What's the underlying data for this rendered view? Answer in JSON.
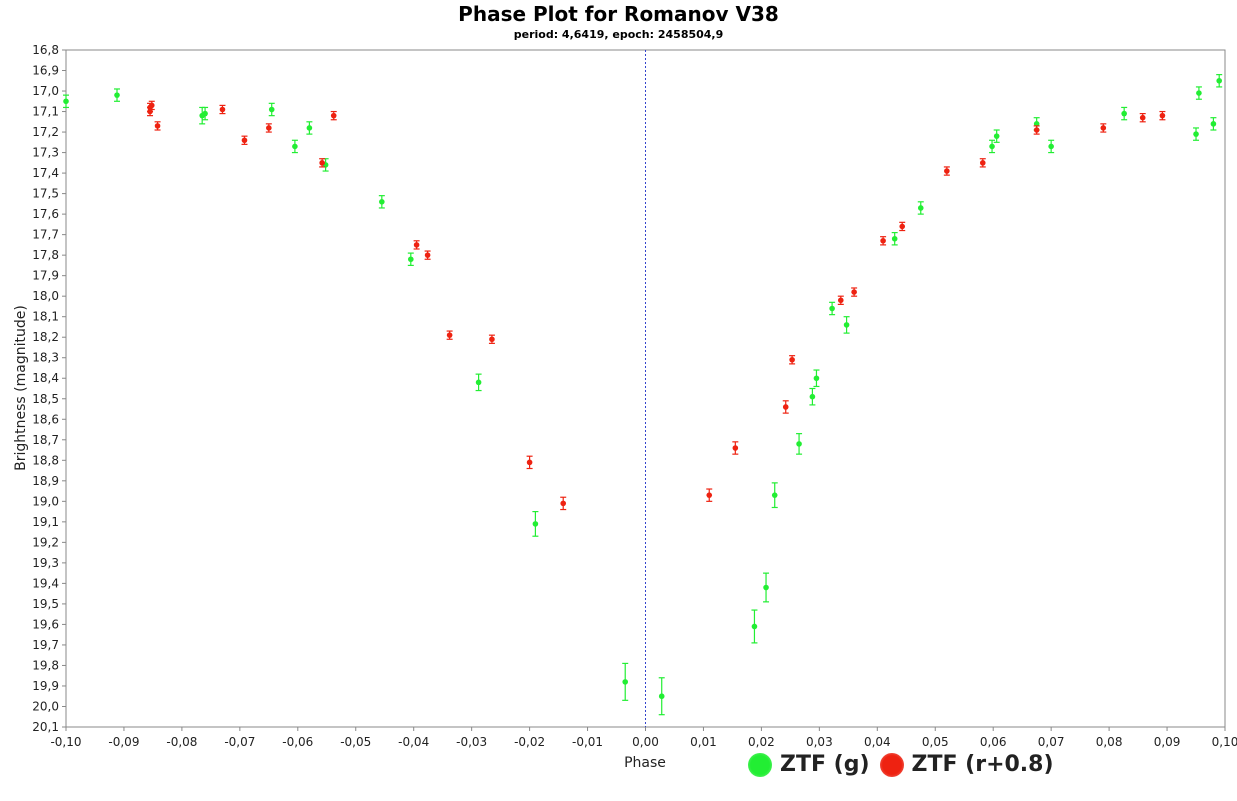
{
  "chart_data": {
    "type": "scatter",
    "title": "Phase Plot for Romanov V38",
    "subtitle": "period: 4,6419, epoch: 2458504,9",
    "xlabel": "Phase",
    "ylabel": "Brightness (magnitude)",
    "xlim": [
      -0.1,
      0.1
    ],
    "ylim": [
      16.8,
      20.1
    ],
    "y_inverted": true,
    "grid": false,
    "vertical_reference_line_x": 0.0,
    "x_ticks": [
      "-0,10",
      "-0,09",
      "-0,08",
      "-0,07",
      "-0,06",
      "-0,05",
      "-0,04",
      "-0,03",
      "-0,02",
      "-0,01",
      "0,00",
      "0,01",
      "0,02",
      "0,03",
      "0,04",
      "0,05",
      "0,06",
      "0,07",
      "0,08",
      "0,09",
      "0,10"
    ],
    "y_ticks": [
      "16,8",
      "16,9",
      "17,0",
      "17,1",
      "17,2",
      "17,3",
      "17,4",
      "17,5",
      "17,6",
      "17,7",
      "17,8",
      "17,9",
      "18,0",
      "18,1",
      "18,2",
      "18,3",
      "18,4",
      "18,5",
      "18,6",
      "18,7",
      "18,8",
      "18,9",
      "19,0",
      "19,1",
      "19,2",
      "19,3",
      "19,4",
      "19,5",
      "19,6",
      "19,7",
      "19,8",
      "19,9",
      "20,0",
      "20,1"
    ],
    "legend_position": "bottom-right",
    "series": [
      {
        "name": "ZTF (g)",
        "color": "#22ee33",
        "points": [
          {
            "x": -0.1,
            "y": 17.05,
            "err": 0.03
          },
          {
            "x": -0.0912,
            "y": 17.02,
            "err": 0.03
          },
          {
            "x": -0.0765,
            "y": 17.12,
            "err": 0.04
          },
          {
            "x": -0.076,
            "y": 17.11,
            "err": 0.03
          },
          {
            "x": -0.0645,
            "y": 17.09,
            "err": 0.03
          },
          {
            "x": -0.0605,
            "y": 17.27,
            "err": 0.03
          },
          {
            "x": -0.058,
            "y": 17.18,
            "err": 0.03
          },
          {
            "x": -0.0552,
            "y": 17.36,
            "err": 0.03
          },
          {
            "x": -0.0455,
            "y": 17.54,
            "err": 0.03
          },
          {
            "x": -0.0405,
            "y": 17.82,
            "err": 0.03
          },
          {
            "x": -0.0288,
            "y": 18.42,
            "err": 0.04
          },
          {
            "x": -0.019,
            "y": 19.11,
            "err": 0.06
          },
          {
            "x": -0.0035,
            "y": 19.88,
            "err": 0.09
          },
          {
            "x": 0.0028,
            "y": 19.95,
            "err": 0.09
          },
          {
            "x": 0.0188,
            "y": 19.61,
            "err": 0.08
          },
          {
            "x": 0.0208,
            "y": 19.42,
            "err": 0.07
          },
          {
            "x": 0.0223,
            "y": 18.97,
            "err": 0.06
          },
          {
            "x": 0.0265,
            "y": 18.72,
            "err": 0.05
          },
          {
            "x": 0.0288,
            "y": 18.49,
            "err": 0.04
          },
          {
            "x": 0.0295,
            "y": 18.4,
            "err": 0.04
          },
          {
            "x": 0.0322,
            "y": 18.06,
            "err": 0.03
          },
          {
            "x": 0.0347,
            "y": 18.14,
            "err": 0.04
          },
          {
            "x": 0.043,
            "y": 17.72,
            "err": 0.03
          },
          {
            "x": 0.0475,
            "y": 17.57,
            "err": 0.03
          },
          {
            "x": 0.0598,
            "y": 17.27,
            "err": 0.03
          },
          {
            "x": 0.0606,
            "y": 17.22,
            "err": 0.03
          },
          {
            "x": 0.0675,
            "y": 17.16,
            "err": 0.03
          },
          {
            "x": 0.07,
            "y": 17.27,
            "err": 0.03
          },
          {
            "x": 0.0826,
            "y": 17.11,
            "err": 0.03
          },
          {
            "x": 0.095,
            "y": 17.21,
            "err": 0.03
          },
          {
            "x": 0.0955,
            "y": 17.01,
            "err": 0.03
          },
          {
            "x": 0.098,
            "y": 17.16,
            "err": 0.03
          },
          {
            "x": 0.099,
            "y": 16.95,
            "err": 0.03
          }
        ]
      },
      {
        "name": "ZTF (r+0.8)",
        "color": "#ee2211",
        "points": [
          {
            "x": -0.0855,
            "y": 17.08,
            "err": 0.02
          },
          {
            "x": -0.0852,
            "y": 17.07,
            "err": 0.02
          },
          {
            "x": -0.0855,
            "y": 17.1,
            "err": 0.02
          },
          {
            "x": -0.0842,
            "y": 17.17,
            "err": 0.02
          },
          {
            "x": -0.073,
            "y": 17.09,
            "err": 0.02
          },
          {
            "x": -0.0692,
            "y": 17.24,
            "err": 0.02
          },
          {
            "x": -0.065,
            "y": 17.18,
            "err": 0.02
          },
          {
            "x": -0.0558,
            "y": 17.35,
            "err": 0.02
          },
          {
            "x": -0.0538,
            "y": 17.12,
            "err": 0.02
          },
          {
            "x": -0.0395,
            "y": 17.75,
            "err": 0.02
          },
          {
            "x": -0.0376,
            "y": 17.8,
            "err": 0.02
          },
          {
            "x": -0.0338,
            "y": 18.19,
            "err": 0.02
          },
          {
            "x": -0.0265,
            "y": 18.21,
            "err": 0.02
          },
          {
            "x": -0.02,
            "y": 18.81,
            "err": 0.03
          },
          {
            "x": -0.0142,
            "y": 19.01,
            "err": 0.03
          },
          {
            "x": 0.011,
            "y": 18.97,
            "err": 0.03
          },
          {
            "x": 0.0155,
            "y": 18.74,
            "err": 0.03
          },
          {
            "x": 0.0242,
            "y": 18.54,
            "err": 0.03
          },
          {
            "x": 0.0253,
            "y": 18.31,
            "err": 0.02
          },
          {
            "x": 0.0337,
            "y": 18.02,
            "err": 0.02
          },
          {
            "x": 0.036,
            "y": 17.98,
            "err": 0.02
          },
          {
            "x": 0.041,
            "y": 17.73,
            "err": 0.02
          },
          {
            "x": 0.0443,
            "y": 17.66,
            "err": 0.02
          },
          {
            "x": 0.052,
            "y": 17.39,
            "err": 0.02
          },
          {
            "x": 0.0582,
            "y": 17.35,
            "err": 0.02
          },
          {
            "x": 0.0675,
            "y": 17.19,
            "err": 0.02
          },
          {
            "x": 0.079,
            "y": 17.18,
            "err": 0.02
          },
          {
            "x": 0.0858,
            "y": 17.13,
            "err": 0.02
          },
          {
            "x": 0.0892,
            "y": 17.12,
            "err": 0.02
          }
        ]
      }
    ]
  }
}
